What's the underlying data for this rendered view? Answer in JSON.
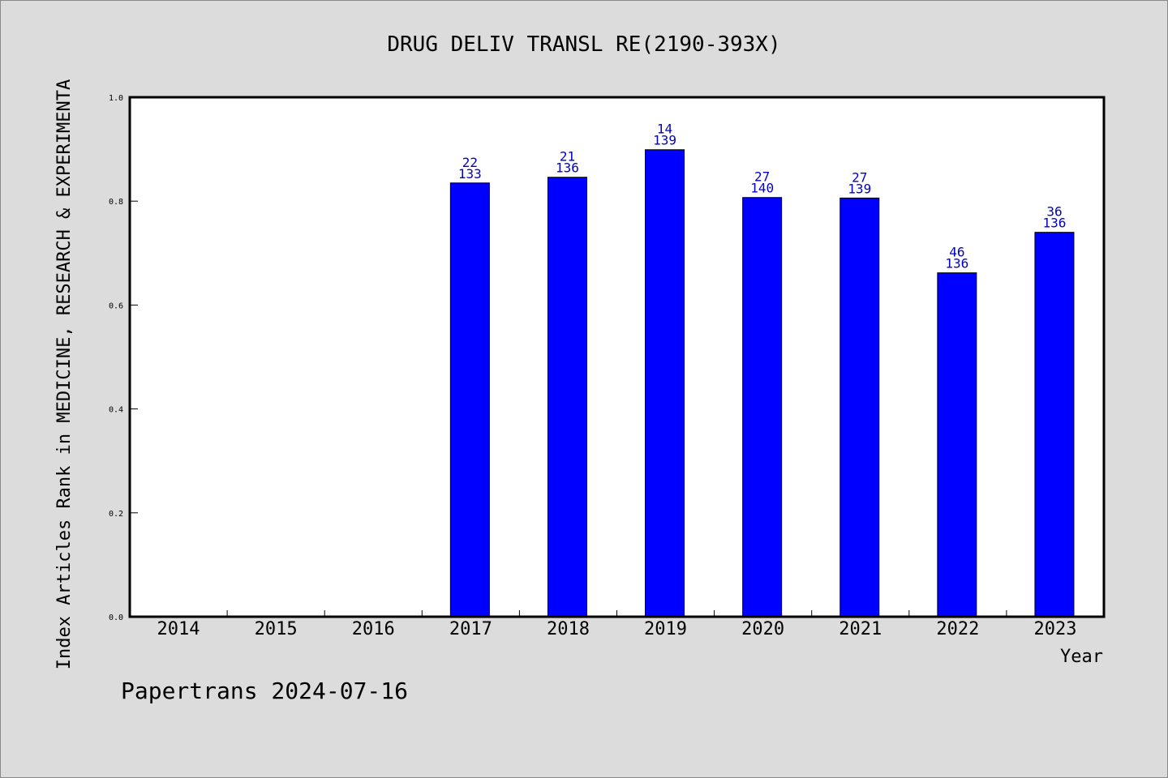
{
  "chart_data": {
    "type": "bar",
    "title": "DRUG DELIV TRANSL RE(2190-393X)",
    "ylabel": "Index Articles Rank in MEDICINE, RESEARCH & EXPERIMENTA",
    "xlabel": "Year",
    "ylim": [
      0.0,
      1.0
    ],
    "yticks": [
      "0.0",
      "0.2",
      "0.4",
      "0.6",
      "0.8",
      "1.0"
    ],
    "grid": false,
    "categories": [
      "2014",
      "2015",
      "2016",
      "2017",
      "2018",
      "2019",
      "2020",
      "2021",
      "2022",
      "2023"
    ],
    "values": [
      null,
      null,
      null,
      0.835,
      0.846,
      0.899,
      0.807,
      0.806,
      0.662,
      0.74
    ],
    "bar_labels_top": [
      null,
      null,
      null,
      "22",
      "21",
      "14",
      "27",
      "27",
      "46",
      "36"
    ],
    "bar_labels_bottom": [
      null,
      null,
      null,
      "133",
      "136",
      "139",
      "140",
      "139",
      "136",
      "136"
    ],
    "bar_color": "#0000ff",
    "label_color": "#0000cc"
  },
  "footer": {
    "text": "Papertrans 2024-07-16"
  }
}
